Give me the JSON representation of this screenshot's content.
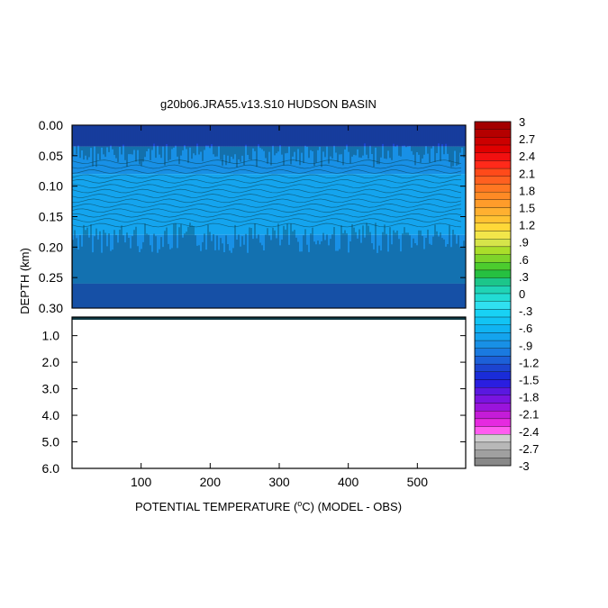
{
  "chart_data": {
    "type": "heatmap",
    "title": "g20b06.JRA55.v13.S10 HUDSON BASIN",
    "xlabel_parts": [
      "POTENTIAL TEMPERATURE (",
      "o",
      "C) (MODEL - OBS)"
    ],
    "ylabel": "DEPTH (km)",
    "x_range": [
      0,
      570
    ],
    "x_ticks": [
      100,
      200,
      300,
      400,
      500
    ],
    "upper_panel": {
      "y_range": [
        0,
        0.3
      ],
      "y_ticks": [
        "0.00",
        "0.05",
        "0.10",
        "0.15",
        "0.20",
        "0.25",
        "0.30"
      ],
      "depth_bands": [
        {
          "from": 0.0,
          "to": 0.035,
          "value": -1.3
        },
        {
          "from": 0.035,
          "to": 0.08,
          "value": -0.9
        },
        {
          "from": 0.08,
          "to": 0.18,
          "value": -0.7
        },
        {
          "from": 0.18,
          "to": 0.26,
          "value": -0.9
        },
        {
          "from": 0.26,
          "to": 0.3,
          "value": -1.2
        }
      ]
    },
    "lower_panel": {
      "y_range": [
        0.3,
        6.0
      ],
      "y_ticks": [
        "1.0",
        "2.0",
        "3.0",
        "4.0",
        "5.0",
        "6.0"
      ]
    },
    "colorbar": {
      "labels": [
        "3",
        "2.7",
        "2.4",
        "2.1",
        "1.8",
        "1.5",
        "1.2",
        ".9",
        ".6",
        ".3",
        "0",
        "-.3",
        "-.6",
        "-.9",
        "-1.2",
        "-1.5",
        "-1.8",
        "-2.1",
        "-2.4",
        "-2.7",
        "-3"
      ],
      "colors": [
        "#a30000",
        "#b50000",
        "#cc0000",
        "#e00000",
        "#f21010",
        "#ff2a1a",
        "#ff4a1a",
        "#ff6020",
        "#ff7722",
        "#ff8a25",
        "#ff9c2a",
        "#ffb030",
        "#ffc232",
        "#ffd838",
        "#f2e64a",
        "#d6e44a",
        "#aade2a",
        "#7ed42a",
        "#4ccc2e",
        "#26c040",
        "#1cc68a",
        "#20d4b6",
        "#22dcd4",
        "#30e0f0",
        "#18d2f4",
        "#12c4f4",
        "#10b4f2",
        "#14a4ee",
        "#1890e6",
        "#1a7ae0",
        "#1c60d8",
        "#1c44d0",
        "#1a2cd8",
        "#2a1ee0",
        "#5a18e0",
        "#7a14e0",
        "#9a14dc",
        "#c41cd8",
        "#e62ae0",
        "#ff5cf0",
        "#d0d0d0",
        "#b8b8b8",
        "#a0a0a0",
        "#888888"
      ]
    }
  }
}
